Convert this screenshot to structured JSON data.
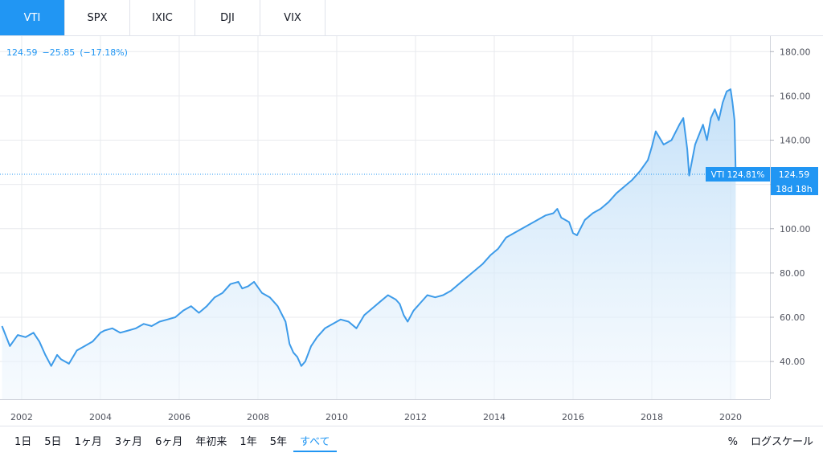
{
  "tabs": [
    {
      "label": "VTI",
      "active": true
    },
    {
      "label": "SPX",
      "active": false
    },
    {
      "label": "IXIC",
      "active": false
    },
    {
      "label": "DJI",
      "active": false
    },
    {
      "label": "VIX",
      "active": false
    }
  ],
  "legend": {
    "last": "124.59",
    "change": "−25.85",
    "change_pct": "(−17.18%)"
  },
  "ranges": [
    {
      "label": "1日",
      "active": false
    },
    {
      "label": "5日",
      "active": false
    },
    {
      "label": "1ヶ月",
      "active": false
    },
    {
      "label": "3ヶ月",
      "active": false
    },
    {
      "label": "6ヶ月",
      "active": false
    },
    {
      "label": "年初来",
      "active": false
    },
    {
      "label": "1年",
      "active": false
    },
    {
      "label": "5年",
      "active": false
    },
    {
      "label": "すべて",
      "active": true
    }
  ],
  "controls": {
    "percent": "%",
    "log": "ログスケール"
  },
  "colors": {
    "accent": "#2196f3",
    "line": "#3d9be9",
    "grid": "#e8eaee"
  },
  "chart_data": {
    "type": "area",
    "symbol": "VTI",
    "ylim": [
      23,
      187
    ],
    "xlim": [
      2001.45,
      2021.0
    ],
    "y_ticks": [
      "40.00",
      "60.00",
      "80.00",
      "100.00",
      "120.00",
      "140.00",
      "160.00",
      "180.00"
    ],
    "y_tick_values": [
      40,
      60,
      80,
      100,
      120,
      140,
      160,
      180
    ],
    "x_ticks": [
      "2002",
      "2004",
      "2006",
      "2008",
      "2010",
      "2012",
      "2014",
      "2016",
      "2018",
      "2020"
    ],
    "x_tick_values": [
      2002,
      2004,
      2006,
      2008,
      2010,
      2012,
      2014,
      2016,
      2018,
      2020
    ],
    "last_value_label": "124.59",
    "overlay_label": "VTI 124.81%",
    "countdown_label": "18d 18h",
    "last_value": 124.59,
    "x": [
      2001.5,
      2001.7,
      2001.9,
      2002.1,
      2002.3,
      2002.45,
      2002.6,
      2002.75,
      2002.9,
      2003.0,
      2003.2,
      2003.4,
      2003.6,
      2003.8,
      2004.0,
      2004.1,
      2004.3,
      2004.5,
      2004.7,
      2004.9,
      2005.1,
      2005.3,
      2005.5,
      2005.7,
      2005.9,
      2006.1,
      2006.3,
      2006.5,
      2006.7,
      2006.9,
      2007.1,
      2007.3,
      2007.5,
      2007.6,
      2007.75,
      2007.9,
      2008.1,
      2008.3,
      2008.5,
      2008.7,
      2008.8,
      2008.9,
      2009.0,
      2009.1,
      2009.2,
      2009.35,
      2009.5,
      2009.7,
      2009.9,
      2010.1,
      2010.3,
      2010.5,
      2010.7,
      2010.9,
      2011.1,
      2011.3,
      2011.5,
      2011.6,
      2011.7,
      2011.8,
      2011.95,
      2012.1,
      2012.3,
      2012.5,
      2012.7,
      2012.9,
      2013.1,
      2013.3,
      2013.5,
      2013.7,
      2013.9,
      2014.1,
      2014.3,
      2014.5,
      2014.7,
      2014.9,
      2015.1,
      2015.3,
      2015.5,
      2015.6,
      2015.7,
      2015.9,
      2016.0,
      2016.1,
      2016.3,
      2016.5,
      2016.7,
      2016.9,
      2017.1,
      2017.3,
      2017.5,
      2017.7,
      2017.9,
      2018.0,
      2018.1,
      2018.3,
      2018.5,
      2018.7,
      2018.8,
      2018.9,
      2018.95,
      2019.1,
      2019.3,
      2019.4,
      2019.5,
      2019.6,
      2019.7,
      2019.8,
      2019.9,
      2020.0,
      2020.05,
      2020.1,
      2020.13
    ],
    "y": [
      56,
      47,
      52,
      51,
      53,
      49,
      43,
      38,
      43,
      41,
      39,
      45,
      47,
      49,
      53,
      54,
      55,
      53,
      54,
      55,
      57,
      56,
      58,
      59,
      60,
      63,
      65,
      62,
      65,
      69,
      71,
      75,
      76,
      73,
      74,
      76,
      71,
      69,
      65,
      58,
      48,
      44,
      42,
      38,
      40,
      47,
      51,
      55,
      57,
      59,
      58,
      55,
      61,
      64,
      67,
      70,
      68,
      66,
      61,
      58,
      63,
      66,
      70,
      69,
      70,
      72,
      75,
      78,
      81,
      84,
      88,
      91,
      96,
      98,
      100,
      102,
      104,
      106,
      107,
      109,
      105,
      103,
      98,
      97,
      104,
      107,
      109,
      112,
      116,
      119,
      122,
      126,
      131,
      137,
      144,
      138,
      140,
      147,
      150,
      136,
      124,
      138,
      147,
      140,
      150,
      154,
      149,
      157,
      162,
      163,
      157,
      149,
      124.59
    ]
  }
}
